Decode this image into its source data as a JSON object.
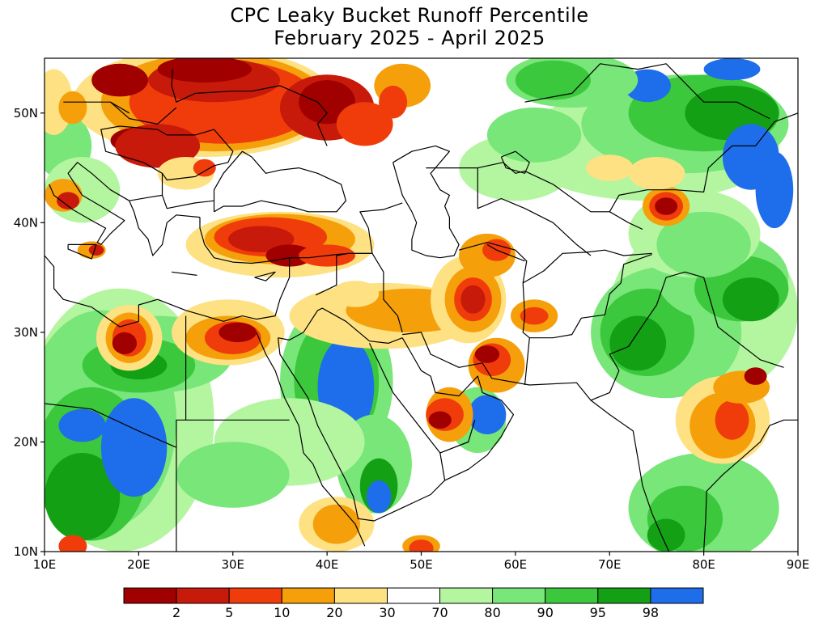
{
  "title": {
    "line1": "CPC Leaky Bucket Runoff Percentile",
    "line2": "February 2025 - April 2025"
  },
  "axes": {
    "x_ticks": [
      "10E",
      "20E",
      "30E",
      "40E",
      "50E",
      "60E",
      "70E",
      "80E",
      "90E"
    ],
    "y_ticks": [
      "50N",
      "40N",
      "30N",
      "20N",
      "10N"
    ],
    "lon_range": [
      10,
      90
    ],
    "lat_range": [
      10,
      55
    ]
  },
  "legend": {
    "labels": [
      "2",
      "5",
      "10",
      "20",
      "30",
      "70",
      "80",
      "90",
      "95",
      "98"
    ],
    "colors": [
      "#a00000",
      "#c81a0a",
      "#f03c0a",
      "#f5a00a",
      "#fde183",
      "#ffffff",
      "#b4f5a0",
      "#78e678",
      "#3cc83c",
      "#14a014",
      "#1e6eeb"
    ]
  },
  "map_colors": {
    "very_dry": "#a00000",
    "dry": "#c81a0a",
    "moderately_dry": "#f03c0a",
    "slightly_dry": "#f5a00a",
    "near_dry": "#fde183",
    "normal": "#ffffff",
    "near_wet": "#b4f5a0",
    "slightly_wet": "#78e678",
    "wet": "#3cc83c",
    "very_wet": "#14a014",
    "extremely_wet": "#1e6eeb"
  }
}
